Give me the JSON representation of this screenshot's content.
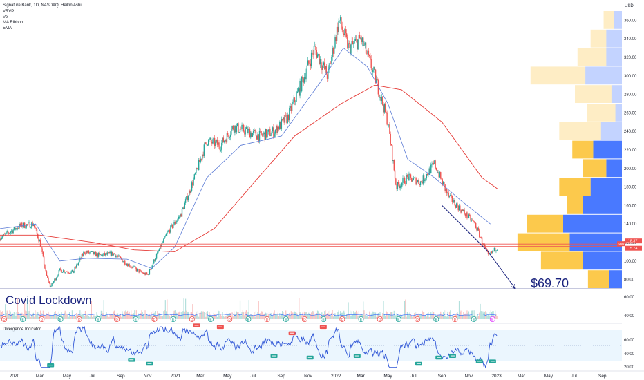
{
  "header": {
    "title": "Signature Bank, 1D, NASDAQ, Heikin Ashi",
    "indicators": [
      "VRVP",
      "Vol",
      "MA Ribbon",
      "EMA"
    ],
    "currency": "USD"
  },
  "chart_data": {
    "type": "candlestick",
    "symbol": "SBNY",
    "price_axis": {
      "range": [
        70,
        370
      ],
      "ticks": [
        80,
        100,
        120,
        140,
        160,
        180,
        200,
        220,
        240,
        260,
        280,
        300,
        320,
        340,
        360
      ]
    },
    "time_axis": {
      "labels": [
        "2020",
        "Mar",
        "May",
        "Jul",
        "Sep",
        "Nov",
        "2021",
        "Mar",
        "May",
        "Jul",
        "Sep",
        "Nov",
        "2022",
        "Mar",
        "May",
        "Jul",
        "Sep",
        "Nov",
        "2023",
        "Mar",
        "May",
        "Jul",
        "Sep"
      ]
    },
    "price_path": [
      [
        "2019-12-01",
        125
      ],
      [
        "2020-01-15",
        138
      ],
      [
        "2020-02-15",
        140
      ],
      [
        "2020-03-01",
        120
      ],
      [
        "2020-03-15",
        85
      ],
      [
        "2020-03-25",
        72
      ],
      [
        "2020-04-15",
        90
      ],
      [
        "2020-05-15",
        88
      ],
      [
        "2020-06-10",
        110
      ],
      [
        "2020-07-15",
        106
      ],
      [
        "2020-08-15",
        108
      ],
      [
        "2020-09-15",
        97
      ],
      [
        "2020-10-15",
        88
      ],
      [
        "2020-11-01",
        85
      ],
      [
        "2020-11-15",
        100
      ],
      [
        "2020-12-15",
        130
      ],
      [
        "2021-01-15",
        150
      ],
      [
        "2021-02-15",
        190
      ],
      [
        "2021-03-15",
        230
      ],
      [
        "2021-04-15",
        225
      ],
      [
        "2021-05-15",
        245
      ],
      [
        "2021-06-15",
        240
      ],
      [
        "2021-07-15",
        235
      ],
      [
        "2021-08-15",
        240
      ],
      [
        "2021-09-15",
        255
      ],
      [
        "2021-10-15",
        290
      ],
      [
        "2021-11-15",
        330
      ],
      [
        "2021-12-15",
        300
      ],
      [
        "2022-01-10",
        360
      ],
      [
        "2022-02-01",
        330
      ],
      [
        "2022-03-01",
        340
      ],
      [
        "2022-04-01",
        300
      ],
      [
        "2022-05-01",
        250
      ],
      [
        "2022-05-20",
        180
      ],
      [
        "2022-06-15",
        190
      ],
      [
        "2022-07-15",
        185
      ],
      [
        "2022-08-15",
        205
      ],
      [
        "2022-09-15",
        170
      ],
      [
        "2022-10-15",
        155
      ],
      [
        "2022-11-15",
        140
      ],
      [
        "2022-12-15",
        105
      ],
      [
        "2023-01-05",
        115
      ]
    ],
    "ma50_path": [
      [
        "2019-12-01",
        135
      ],
      [
        "2020-02-20",
        140
      ],
      [
        "2020-04-15",
        100
      ],
      [
        "2020-06-15",
        103
      ],
      [
        "2020-09-15",
        102
      ],
      [
        "2020-11-10",
        92
      ],
      [
        "2021-01-01",
        115
      ],
      [
        "2021-03-15",
        190
      ],
      [
        "2021-06-01",
        225
      ],
      [
        "2021-09-01",
        235
      ],
      [
        "2021-12-01",
        295
      ],
      [
        "2022-01-20",
        330
      ],
      [
        "2022-03-15",
        310
      ],
      [
        "2022-05-01",
        270
      ],
      [
        "2022-06-15",
        210
      ],
      [
        "2022-08-15",
        190
      ],
      [
        "2022-10-15",
        165
      ],
      [
        "2022-12-20",
        140
      ]
    ],
    "ma200_path": [
      [
        "2019-12-01",
        128
      ],
      [
        "2020-03-01",
        128
      ],
      [
        "2020-07-01",
        120
      ],
      [
        "2020-10-01",
        112
      ],
      [
        "2021-01-01",
        110
      ],
      [
        "2021-04-01",
        135
      ],
      [
        "2021-07-01",
        185
      ],
      [
        "2021-10-01",
        235
      ],
      [
        "2022-01-15",
        270
      ],
      [
        "2022-04-01",
        290
      ],
      [
        "2022-06-01",
        285
      ],
      [
        "2022-09-01",
        250
      ],
      [
        "2022-12-01",
        190
      ],
      [
        "2023-01-05",
        178
      ]
    ],
    "horizontal_levels": [
      {
        "price": 118.37,
        "color": "#ef5350"
      },
      {
        "price": 115.74,
        "color": "#ef5350"
      },
      {
        "price": 69.7,
        "color": "#1a237e"
      }
    ],
    "price_tags": [
      {
        "label": "SBNY",
        "value": "118.37",
        "color": "#ef5350"
      },
      {
        "label": "",
        "value": "115.74",
        "color": "#ef5350"
      }
    ],
    "downtrend_line": [
      [
        "2022-09-01",
        160
      ],
      [
        "2022-12-15",
        110
      ]
    ],
    "target_arrow": {
      "from": [
        "2023-01-15",
        102
      ],
      "to": [
        "2023-02-15",
        70
      ]
    },
    "annotations": [
      {
        "text": "$69.70"
      },
      {
        "text": "Covid Lockdown"
      }
    ],
    "volume_profile": [
      {
        "price": 360,
        "up": 8,
        "down": 6,
        "bright": false
      },
      {
        "price": 340,
        "up": 12,
        "down": 12,
        "bright": false
      },
      {
        "price": 320,
        "up": 22,
        "down": 12,
        "bright": false
      },
      {
        "price": 300,
        "up": 42,
        "down": 28,
        "bright": false
      },
      {
        "price": 280,
        "up": 28,
        "down": 8,
        "bright": false
      },
      {
        "price": 260,
        "up": 22,
        "down": 5,
        "bright": false
      },
      {
        "price": 240,
        "up": 32,
        "down": 16,
        "bright": false
      },
      {
        "price": 220,
        "up": 16,
        "down": 22,
        "bright": true
      },
      {
        "price": 200,
        "up": 18,
        "down": 12,
        "bright": true
      },
      {
        "price": 180,
        "up": 24,
        "down": 24,
        "bright": true
      },
      {
        "price": 160,
        "up": 12,
        "down": 30,
        "bright": true
      },
      {
        "price": 140,
        "up": 28,
        "down": 45,
        "bright": true
      },
      {
        "price": 120,
        "up": 40,
        "down": 40,
        "bright": true
      },
      {
        "price": 100,
        "up": 32,
        "down": 30,
        "bright": true
      },
      {
        "price": 80,
        "up": 16,
        "down": 10,
        "bright": true
      }
    ],
    "volume_axis": {
      "ticks": [
        "60.00",
        "40.00"
      ]
    },
    "oscillator": {
      "name": "Divergence Indicator",
      "ticks": [
        "60.00",
        "40.00",
        "20.00"
      ],
      "band": [
        30,
        70
      ],
      "signals": [
        {
          "date": "2020-03-25",
          "value": 28,
          "type": "bull"
        },
        {
          "date": "2020-09-25",
          "value": 35,
          "type": "bull"
        },
        {
          "date": "2020-11-05",
          "value": 30,
          "type": "bull"
        },
        {
          "date": "2021-02-20",
          "value": 72,
          "type": "bear"
        },
        {
          "date": "2021-04-15",
          "value": 70,
          "type": "bear"
        },
        {
          "date": "2021-08-15",
          "value": 40,
          "type": "bull"
        },
        {
          "date": "2021-09-25",
          "value": 62,
          "type": "bear"
        },
        {
          "date": "2021-11-05",
          "value": 38,
          "type": "bull"
        },
        {
          "date": "2021-12-05",
          "value": 70,
          "type": "bear"
        },
        {
          "date": "2022-02-20",
          "value": 40,
          "type": "bull"
        },
        {
          "date": "2022-07-10",
          "value": 30,
          "type": "bull"
        },
        {
          "date": "2022-08-25",
          "value": 38,
          "type": "bull"
        },
        {
          "date": "2022-09-25",
          "value": 40,
          "type": "bull"
        },
        {
          "date": "2022-11-25",
          "value": 33,
          "type": "bull"
        },
        {
          "date": "2022-12-25",
          "value": 33,
          "type": "bull"
        }
      ]
    },
    "events_row": [
      "D",
      "E",
      "D",
      "E",
      "D",
      "E",
      "D",
      "E",
      "D",
      "E",
      "D",
      "E",
      "D",
      "E",
      "D",
      "E",
      "D",
      "E",
      "D",
      "E",
      "D",
      "E",
      "D",
      "E",
      "D",
      "E",
      "E"
    ],
    "colors": {
      "bull": "#26a69a",
      "bear": "#ef5350",
      "ma50": "#5b7bd5",
      "ma200": "#e53935",
      "osc": "#2f56d6",
      "vp_up": "#fbc02d",
      "vp_down": "#2962ff"
    }
  }
}
